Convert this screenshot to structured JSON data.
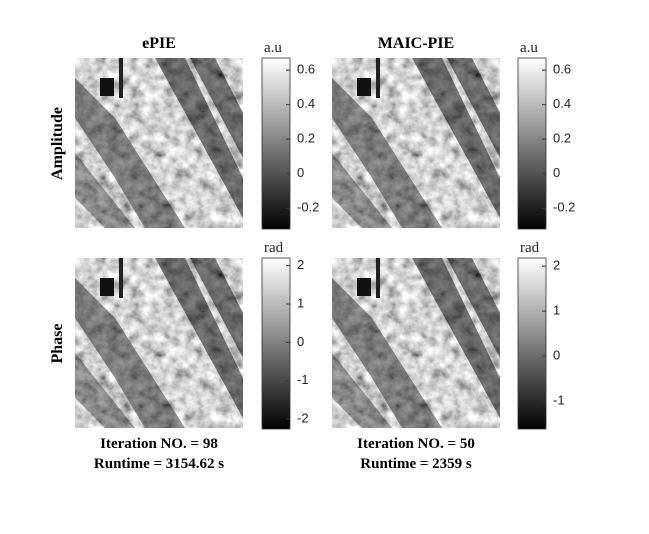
{
  "panels": [
    {
      "title": "ePIE",
      "footer": [
        "Iteration NO. = 98",
        "Runtime = 3154.62 s"
      ]
    },
    {
      "title": "MAIC-PIE",
      "footer": [
        "Iteration NO. = 50",
        "Runtime = 2359 s"
      ]
    }
  ],
  "row_labels": [
    "Amplitude",
    "Phase"
  ],
  "colorbars": [
    {
      "unit": "a.u",
      "lim": [
        -0.32,
        0.67
      ],
      "ticks": [
        0.6,
        0.4,
        0.2,
        0,
        -0.2
      ]
    },
    {
      "unit": "a.u",
      "lim": [
        -0.32,
        0.67
      ],
      "ticks": [
        0.6,
        0.4,
        0.2,
        0,
        -0.2
      ]
    },
    {
      "unit": "rad",
      "lim": [
        -2.26,
        2.2
      ],
      "ticks": [
        2,
        1,
        0,
        -1,
        -2
      ]
    },
    {
      "unit": "rad",
      "lim": [
        -1.62,
        2.18
      ],
      "ticks": [
        2,
        1,
        0,
        -1
      ]
    }
  ]
}
